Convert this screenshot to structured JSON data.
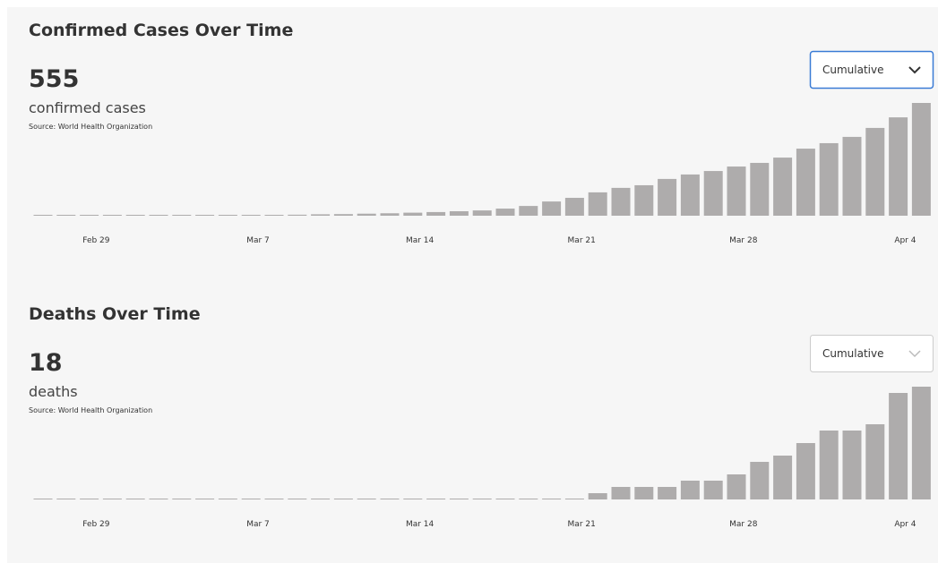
{
  "chart_data": [
    {
      "type": "bar",
      "title": "Confirmed Cases Over Time",
      "total": 555,
      "total_label": "confirmed cases",
      "source": "Source: World Health Organization",
      "mode": "Cumulative",
      "color": "#aeacac",
      "categories": [
        null,
        null,
        null,
        "Feb 29",
        null,
        null,
        null,
        null,
        null,
        null,
        "Mar 7",
        null,
        null,
        null,
        null,
        null,
        null,
        "Mar 14",
        null,
        null,
        null,
        null,
        null,
        null,
        "Mar 21",
        null,
        null,
        null,
        null,
        null,
        null,
        "Mar 28",
        null,
        null,
        null,
        null,
        null,
        null,
        "Apr 4"
      ],
      "values": [
        1,
        1,
        1,
        1,
        1,
        1,
        1,
        2,
        2,
        3,
        4,
        5,
        7,
        8,
        10,
        12,
        15,
        18,
        22,
        26,
        35,
        48,
        70,
        88,
        115,
        137,
        150,
        181,
        203,
        220,
        242,
        260,
        286,
        330,
        357,
        388,
        432,
        484,
        555
      ]
    },
    {
      "type": "bar",
      "title": "Deaths Over Time",
      "total": 18,
      "total_label": "deaths",
      "source": "Source: World Health Organization",
      "mode": "Cumulative",
      "color": "#aeacac",
      "categories": [
        null,
        null,
        null,
        "Feb 29",
        null,
        null,
        null,
        null,
        null,
        null,
        "Mar 7",
        null,
        null,
        null,
        null,
        null,
        null,
        "Mar 14",
        null,
        null,
        null,
        null,
        null,
        null,
        "Mar 21",
        null,
        null,
        null,
        null,
        null,
        null,
        "Mar 28",
        null,
        null,
        null,
        null,
        null,
        null,
        "Apr 4"
      ],
      "values": [
        0,
        0,
        0,
        0,
        0,
        0,
        0,
        0,
        0,
        0,
        0,
        0,
        0,
        0,
        0,
        0,
        0,
        0,
        0,
        0,
        0,
        0,
        0,
        0,
        1,
        2,
        2,
        2,
        3,
        3,
        4,
        6,
        7,
        9,
        11,
        11,
        12,
        17,
        18
      ]
    }
  ]
}
